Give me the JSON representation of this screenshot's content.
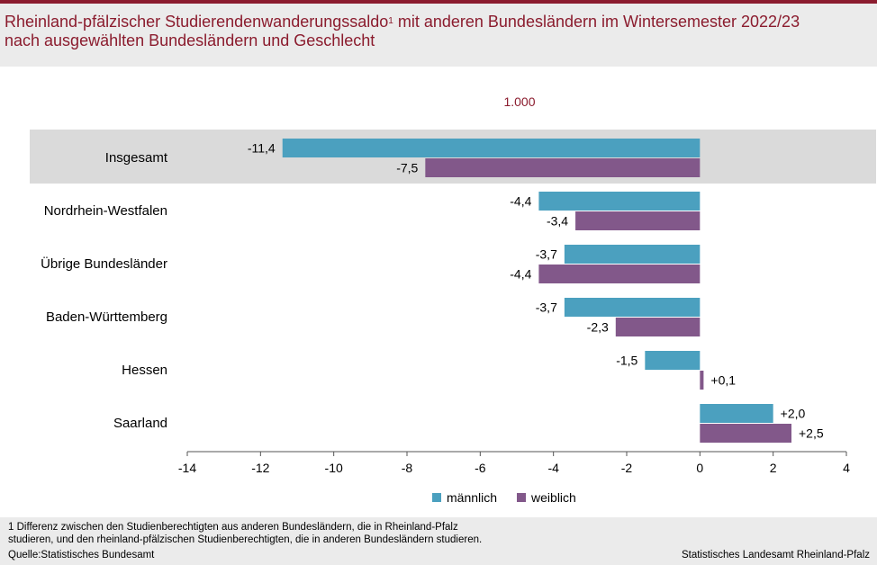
{
  "title": {
    "line1_main": "Rheinland-pfälzischer Studierendenwanderungssaldo",
    "line1_sup": "1",
    "line1_rest": " mit anderen Bundesländern im Wintersemester 2022/23",
    "line2": "nach ausgewählten Bundesländern und Geschlecht"
  },
  "unit_label": "1.000",
  "colors": {
    "maennlich": "#4ba0bf",
    "weiblich": "#82588a",
    "highlight": "#dadada",
    "brand": "#8b1c2e"
  },
  "chart_data": {
    "type": "bar",
    "orientation": "horizontal",
    "title": "Rheinland-pfälzischer Studierendenwanderungssaldo mit anderen Bundesländern im Wintersemester 2022/23 nach ausgewählten Bundesländern und Geschlecht",
    "unit": "1.000",
    "categories": [
      "Insgesamt",
      "Nordrhein-Westfalen",
      "Übrige Bundesländer",
      "Baden-Württemberg",
      "Hessen",
      "Saarland"
    ],
    "highlighted_category": "Insgesamt",
    "series": [
      {
        "name": "männlich",
        "values": [
          -11.4,
          -4.4,
          -3.7,
          -3.7,
          -1.5,
          2.0
        ],
        "labels": [
          "-11,4",
          "-4,4",
          "-3,7",
          "-3,7",
          "-1,5",
          "+2,0"
        ]
      },
      {
        "name": "weiblich",
        "values": [
          -7.5,
          -3.4,
          -4.4,
          -2.3,
          0.1,
          2.5
        ],
        "labels": [
          "-7,5",
          "-3,4",
          "-4,4",
          "-2,3",
          "+0,1",
          "+2,5"
        ]
      }
    ],
    "xlim": [
      -14,
      4
    ],
    "xticks": [
      -14,
      -12,
      -10,
      -8,
      -6,
      -4,
      -2,
      0,
      2,
      4
    ],
    "grid": false,
    "legend_position": "bottom"
  },
  "legend": {
    "maennlich": "männlich",
    "weiblich": "weiblich"
  },
  "footnote": {
    "line1": "1 Differenz zwischen den Studienberechtigten aus anderen Bundesländern, die in Rheinland-Pfalz",
    "line2": "studieren, und den rheinland-pfälzischen Studienberechtigten, die in anderen Bundesländern studieren."
  },
  "source": "Quelle:Statistisches Bundesamt",
  "publisher": "Statistisches Landesamt Rheinland-Pfalz"
}
